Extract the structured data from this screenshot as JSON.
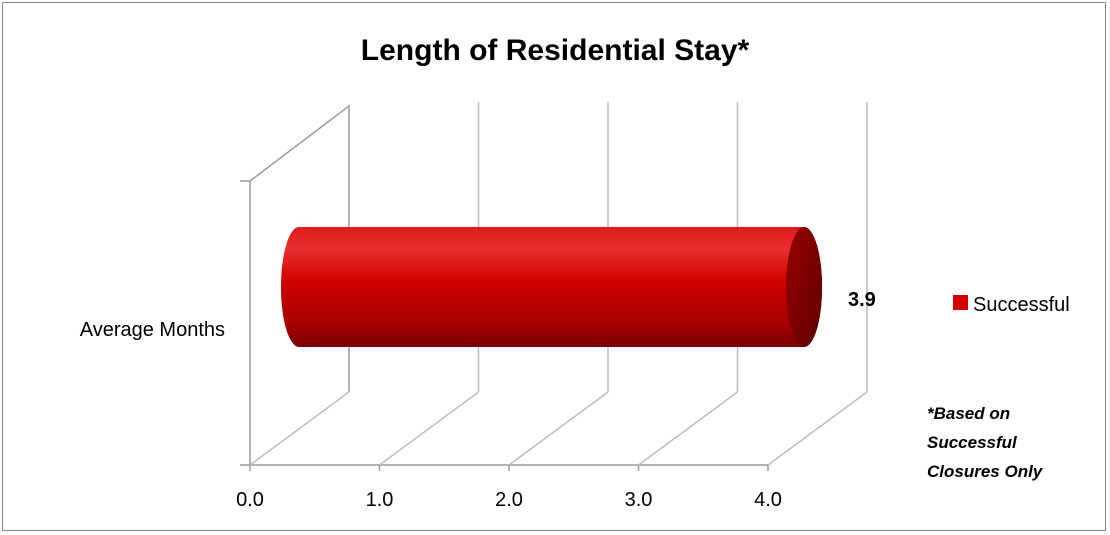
{
  "chart_data": {
    "type": "bar",
    "orientation": "horizontal",
    "style": "3d-cylinder",
    "title": "Length of Residential Stay*",
    "categories": [
      "Average Months"
    ],
    "series": [
      {
        "name": "Successful",
        "values": [
          3.9
        ],
        "color": "#d40000"
      }
    ],
    "data_labels": [
      "3.9"
    ],
    "xlim": [
      0,
      4
    ],
    "x_ticks": [
      "0.0",
      "1.0",
      "2.0",
      "3.0",
      "4.0"
    ],
    "grid": true,
    "legend_position": "right",
    "note_lines": [
      "*Based on",
      "Successful",
      "Closures Only"
    ]
  }
}
